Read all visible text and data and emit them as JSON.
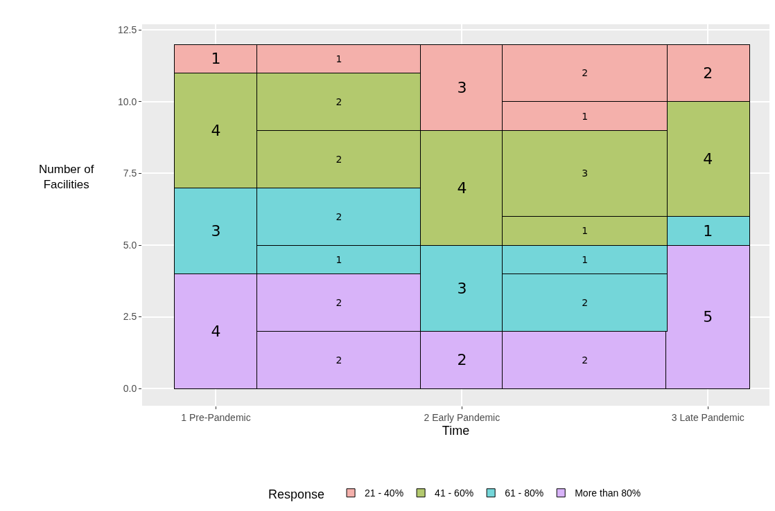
{
  "chart_data": {
    "type": "bar",
    "stacked": true,
    "xlabel": "Time",
    "ylabel": "Number of\nFacilities",
    "legend_title": "Response",
    "categories": [
      "1 Pre-Pandemic",
      null,
      "2 Early Pandemic",
      null,
      "3 Late Pandemic"
    ],
    "series": [
      {
        "name": "More than 80%",
        "color": "#d8b3f9",
        "values": [
          4,
          2,
          2,
          2,
          5
        ]
      },
      {
        "color": "#d8b3f9",
        "values": [
          null,
          2,
          null,
          null,
          null
        ]
      },
      {
        "name": "61 - 80%",
        "color": "#74d6d9",
        "values": [
          3,
          1,
          3,
          2,
          1
        ]
      },
      {
        "color": "#74d6d9",
        "values": [
          null,
          2,
          null,
          1,
          null
        ]
      },
      {
        "name": "41 - 60%",
        "color": "#b3c96e",
        "values": [
          4,
          2,
          4,
          1,
          4
        ]
      },
      {
        "color": "#b3c96e",
        "values": [
          null,
          2,
          null,
          3,
          null
        ]
      },
      {
        "name": "21 - 40%",
        "color": "#f4b0ab",
        "values": [
          1,
          1,
          3,
          1,
          2
        ]
      },
      {
        "color": "#f4b0ab",
        "values": [
          null,
          null,
          null,
          2,
          null
        ]
      }
    ],
    "ylim": [
      -0.6,
      12.7
    ],
    "yticks": [
      {
        "value": 0,
        "label": "0.0"
      },
      {
        "value": 2.5,
        "label": "2.5"
      },
      {
        "value": 5,
        "label": "5.0"
      },
      {
        "value": 7.5,
        "label": "7.5"
      },
      {
        "value": 10,
        "label": "10.0"
      },
      {
        "value": 12.5,
        "label": "12.5"
      }
    ],
    "grid": true,
    "legend": "bottom",
    "data_labels": true
  }
}
